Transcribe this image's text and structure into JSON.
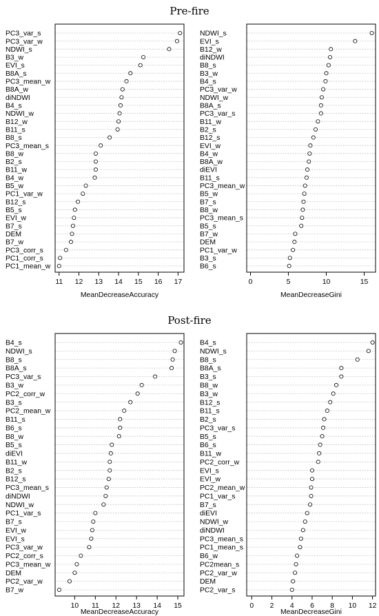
{
  "sections": [
    {
      "title": "Pre-fire"
    },
    {
      "title": "Post-fire"
    }
  ],
  "chart_data": [
    {
      "type": "scatter",
      "section": "Pre-fire",
      "xlabel": "MeanDecreaseAccuracy",
      "xlim": [
        10.8,
        17.3
      ],
      "xticks": [
        11,
        12,
        13,
        14,
        15,
        16,
        17
      ],
      "categories": [
        "PC3_var_s",
        "PC3_var_w",
        "NDWI_s",
        "B3_w",
        "EVI_s",
        "B8A_s",
        "PC3_mean_w",
        "B8A_w",
        "diNDWI",
        "B4_s",
        "NDWI_w",
        "B12_w",
        "B11_s",
        "B8_s",
        "PC3_mean_s",
        "B8_w",
        "B2_s",
        "B11_w",
        "B4_w",
        "B5_w",
        "PC1_var_w",
        "B12_s",
        "B5_s",
        "EVI_w",
        "B7_s",
        "DEM",
        "B7_w",
        "PC3_corr_s",
        "PC1_corr_s",
        "PC1_mean_w"
      ],
      "values": [
        17.1,
        16.95,
        16.55,
        15.25,
        15.1,
        14.6,
        14.4,
        14.2,
        14.15,
        14.1,
        14.05,
        14.0,
        13.95,
        13.55,
        13.1,
        12.85,
        12.85,
        12.85,
        12.8,
        12.35,
        12.2,
        11.95,
        11.8,
        11.75,
        11.7,
        11.65,
        11.6,
        11.35,
        11.05,
        11.0
      ]
    },
    {
      "type": "scatter",
      "section": "Pre-fire",
      "xlabel": "MeanDecreaseGini",
      "xlim": [
        -0.5,
        16.5
      ],
      "xticks": [
        0,
        5,
        10,
        15
      ],
      "categories": [
        "NDWI_s",
        "EVI_s",
        "B12_w",
        "diNDWI",
        "B8_s",
        "B3_w",
        "B4_s",
        "PC3_var_w",
        "NDWI_w",
        "B8A_s",
        "PC3_var_s",
        "B11_w",
        "B2_s",
        "B12_s",
        "EVI_w",
        "B4_w",
        "B8A_w",
        "diEVI",
        "B11_s",
        "PC3_mean_w",
        "B5_w",
        "B7_s",
        "B8_w",
        "PC3_mean_s",
        "B5_s",
        "B7_w",
        "DEM",
        "PC1_var_w",
        "B3_s",
        "B6_s"
      ],
      "values": [
        16.0,
        13.8,
        10.6,
        10.5,
        10.3,
        10.0,
        9.9,
        9.6,
        9.4,
        9.3,
        9.3,
        8.9,
        8.6,
        8.3,
        7.9,
        7.8,
        7.7,
        7.5,
        7.4,
        7.2,
        7.1,
        7.0,
        6.9,
        6.8,
        6.7,
        5.9,
        5.8,
        5.6,
        5.2,
        5.1
      ]
    },
    {
      "type": "scatter",
      "section": "Post-fire",
      "xlabel": "MeanDecreaseAccuracy",
      "xlim": [
        9.05,
        15.3
      ],
      "xticks": [
        10,
        11,
        12,
        13,
        14,
        15
      ],
      "categories": [
        "B4_s",
        "NDWI_s",
        "B8_s",
        "B8A_s",
        "PC3_var_s",
        "B3_w",
        "PC2_corr_w",
        "B3_s",
        "PC2_mean_w",
        "B11_s",
        "B6_s",
        "B8_w",
        "B5_s",
        "diEVI",
        "B11_w",
        "B2_s",
        "B12_s",
        "PC3_mean_s",
        "diNDWI",
        "NDWI_w",
        "PC1_var_s",
        "B7_s",
        "EVI_w",
        "EVI_s",
        "PC3_var_w",
        "PC2_corr_s",
        "PC3_mean_w",
        "DEM",
        "PC2_var_w",
        "B7_w"
      ],
      "values": [
        15.15,
        14.85,
        14.75,
        14.7,
        13.9,
        13.25,
        13.05,
        12.7,
        12.4,
        12.2,
        12.2,
        12.15,
        11.8,
        11.75,
        11.7,
        11.7,
        11.65,
        11.55,
        11.5,
        11.4,
        11.0,
        10.9,
        10.85,
        10.8,
        10.7,
        10.3,
        10.1,
        10.0,
        9.75,
        9.25
      ]
    },
    {
      "type": "scatter",
      "section": "Post-fire",
      "xlabel": "MeanDecreaseGini",
      "xlim": [
        -0.5,
        12.3
      ],
      "xticks": [
        0,
        2,
        4,
        6,
        8,
        10,
        12
      ],
      "categories": [
        "B4_s",
        "NDWI_s",
        "B8_s",
        "B8A_s",
        "B3_s",
        "B8_w",
        "B3_w",
        "B12_s",
        "B11_s",
        "B2_s",
        "PC3_var_s",
        "B5_s",
        "B6_s",
        "B11_w",
        "PC2_corr_w",
        "EVI_s",
        "EVI_w",
        "PC2_mean_w",
        "PC1_var_s",
        "B7_s",
        "diEVI",
        "NDWI_w",
        "diNDWI",
        "PC3_mean_s",
        "PC1_mean_s",
        "B6_w",
        "PC2mean_s",
        "PC2_var_w",
        "DEM",
        "PC2_var_s"
      ],
      "values": [
        12.0,
        11.6,
        10.5,
        8.9,
        8.9,
        8.4,
        8.1,
        7.8,
        7.5,
        7.2,
        7.1,
        7.0,
        6.8,
        6.7,
        6.6,
        6.0,
        6.0,
        5.9,
        5.9,
        5.8,
        5.5,
        5.3,
        5.1,
        4.9,
        4.8,
        4.5,
        4.4,
        4.3,
        4.1,
        4.0
      ]
    }
  ]
}
